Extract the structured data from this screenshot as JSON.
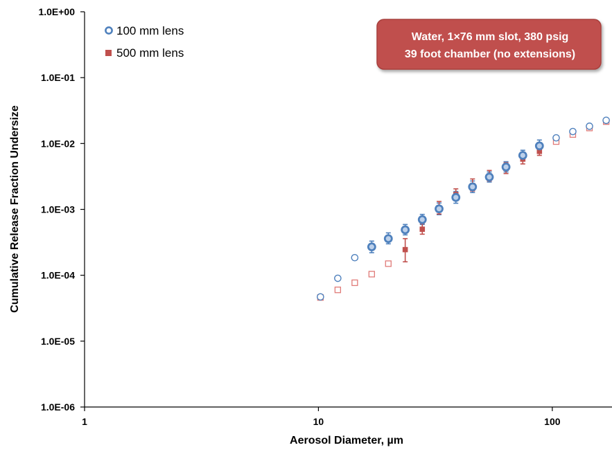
{
  "chart_data": {
    "type": "scatter",
    "xlabel": "Aerosol Diameter, µm",
    "ylabel": "Cumulative Release Fraction Undersize",
    "x_scale": "log",
    "y_scale": "log",
    "xlim": [
      1,
      180
    ],
    "ylim": [
      1e-06,
      1
    ],
    "x_ticks": [
      1,
      10,
      100
    ],
    "x_tick_labels": [
      "1",
      "10",
      "100"
    ],
    "y_ticks": [
      1,
      0.1,
      0.01,
      0.001,
      0.0001,
      1e-05,
      1e-06
    ],
    "y_tick_labels": [
      "1.0E+00",
      "1.0E-01",
      "1.0E-02",
      "1.0E-03",
      "1.0E-04",
      "1.0E-05",
      "1.0E-06"
    ],
    "grid": false,
    "legend_position": "top-left",
    "annotation": {
      "lines": [
        "Water, 1×76 mm slot, 380 psig",
        "39 foot chamber (no extensions)"
      ],
      "position": "top-right",
      "fill": "#c0504d"
    },
    "series": [
      {
        "name": "100 mm lens",
        "marker": "circle",
        "color": "#4f81bd",
        "points": [
          {
            "x": 10.2,
            "y": 4.7e-05,
            "filled": false
          },
          {
            "x": 12.1,
            "y": 9e-05,
            "filled": false
          },
          {
            "x": 14.3,
            "y": 0.000185,
            "filled": false
          },
          {
            "x": 16.9,
            "y": 0.00027,
            "filled": true,
            "err": [
              0.00022,
              0.00033
            ]
          },
          {
            "x": 19.9,
            "y": 0.00036,
            "filled": true,
            "err": [
              0.0003,
              0.00044
            ]
          },
          {
            "x": 23.5,
            "y": 0.00049,
            "filled": true,
            "err": [
              0.00041,
              0.00059
            ]
          },
          {
            "x": 27.8,
            "y": 0.0007,
            "filled": true,
            "err": [
              0.00059,
              0.00084
            ]
          },
          {
            "x": 32.8,
            "y": 0.00102,
            "filled": true,
            "err": [
              0.00083,
              0.00125
            ]
          },
          {
            "x": 38.7,
            "y": 0.00152,
            "filled": true,
            "err": [
              0.00124,
              0.00187
            ]
          },
          {
            "x": 45.6,
            "y": 0.0022,
            "filled": true,
            "err": [
              0.0018,
              0.0027
            ]
          },
          {
            "x": 53.8,
            "y": 0.0031,
            "filled": true,
            "err": [
              0.0026,
              0.0037
            ]
          },
          {
            "x": 63.4,
            "y": 0.0044,
            "filled": true,
            "err": [
              0.0037,
              0.0053
            ]
          },
          {
            "x": 74.8,
            "y": 0.0066,
            "filled": true,
            "err": [
              0.0055,
              0.0079
            ]
          },
          {
            "x": 88.1,
            "y": 0.0092,
            "filled": true,
            "err": [
              0.0075,
              0.0113
            ]
          },
          {
            "x": 103.9,
            "y": 0.0122,
            "filled": false
          },
          {
            "x": 122.4,
            "y": 0.0152,
            "filled": false
          },
          {
            "x": 144.2,
            "y": 0.0183,
            "filled": false
          },
          {
            "x": 170.0,
            "y": 0.0225,
            "filled": false
          }
        ]
      },
      {
        "name": "500 mm lens",
        "marker": "square",
        "color": "#c0504d",
        "points": [
          {
            "x": 10.2,
            "y": 4.6e-05,
            "filled": false
          },
          {
            "x": 12.1,
            "y": 6e-05,
            "filled": false
          },
          {
            "x": 14.3,
            "y": 7.7e-05,
            "filled": false
          },
          {
            "x": 16.9,
            "y": 0.000104,
            "filled": false
          },
          {
            "x": 19.9,
            "y": 0.00015,
            "filled": false
          },
          {
            "x": 23.5,
            "y": 0.000245,
            "filled": true,
            "err": [
              0.00016,
              0.00036
            ]
          },
          {
            "x": 27.8,
            "y": 0.0005,
            "filled": true,
            "err": [
              0.00042,
              0.00061
            ]
          },
          {
            "x": 32.8,
            "y": 0.00105,
            "filled": true,
            "err": [
              0.00085,
              0.00132
            ]
          },
          {
            "x": 38.7,
            "y": 0.00168,
            "filled": true,
            "err": [
              0.00138,
              0.00205
            ]
          },
          {
            "x": 45.6,
            "y": 0.0023,
            "filled": true,
            "err": [
              0.0019,
              0.0029
            ]
          },
          {
            "x": 53.8,
            "y": 0.0032,
            "filled": true,
            "err": [
              0.0027,
              0.0039
            ]
          },
          {
            "x": 63.4,
            "y": 0.0042,
            "filled": true,
            "err": [
              0.0035,
              0.0051
            ]
          },
          {
            "x": 74.8,
            "y": 0.0058,
            "filled": true,
            "err": [
              0.0049,
              0.0069
            ]
          },
          {
            "x": 88.1,
            "y": 0.0076,
            "filled": true,
            "err": [
              0.0066,
              0.0087
            ]
          },
          {
            "x": 103.9,
            "y": 0.0107,
            "filled": false
          },
          {
            "x": 122.4,
            "y": 0.0137,
            "filled": false
          },
          {
            "x": 144.2,
            "y": 0.0172,
            "filled": false
          },
          {
            "x": 170.0,
            "y": 0.0215,
            "filled": false
          }
        ]
      }
    ]
  }
}
